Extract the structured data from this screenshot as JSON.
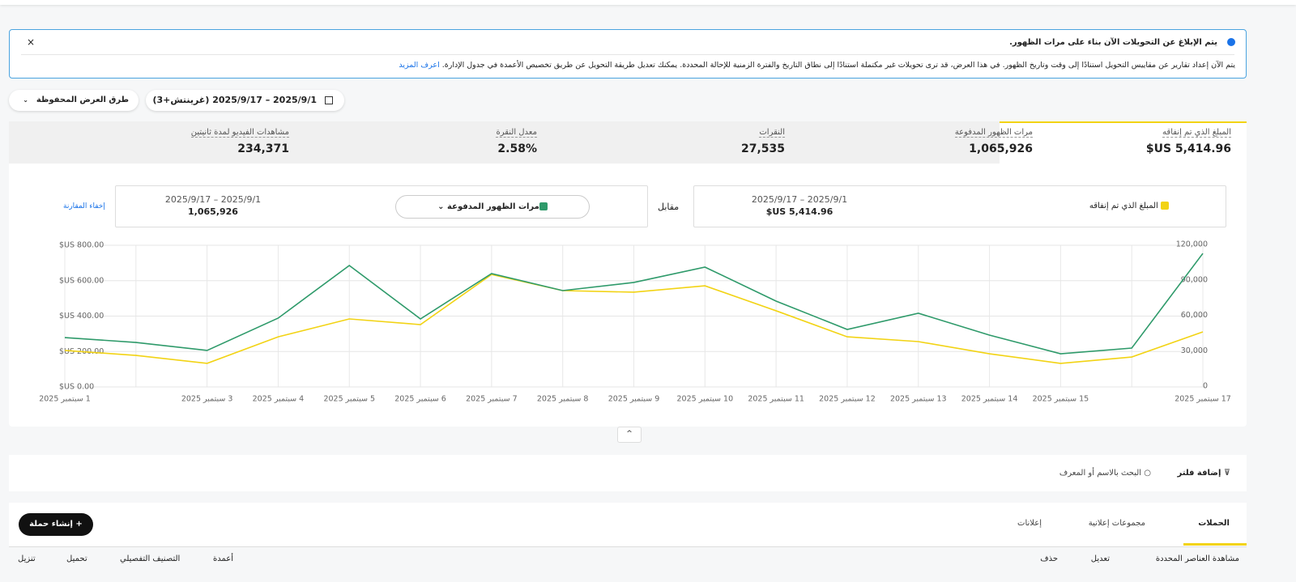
{
  "notice": {
    "title": "يتم الإبلاغ عن التحويلات الآن بناء على مرات الظهور.",
    "body": "يتم الآن إعداد تقارير عن مقاييس التحويل استنادًا إلى وقت وتاريخ الظهور. في هذا العرض، قد ترى تحويلات غير مكتملة استنادًا إلى نطاق التاريخ والفترة الزمنية للإحالة المحددة. يمكنك تعديل طريقة التحويل عن طريق تخصيص الأعمدة في جدول الإدارة.",
    "link": "اعرف المزيد",
    "close": "×"
  },
  "toolbar": {
    "date_range": "2025/9/1 – 2025/9/17 (غرينتش+3)",
    "saved_views": "طرق العرض المحفوظة"
  },
  "metrics": [
    {
      "label": "المبلغ الذي تم إنفاقه",
      "value": "$US 5,414.96"
    },
    {
      "label": "مرات الظهور المدفوعة",
      "value": "1,065,926"
    },
    {
      "label": "النقرات",
      "value": "27,535"
    },
    {
      "label": "معدل النقرة",
      "value": "2.58%"
    },
    {
      "label": "مشاهدات الفيديو لمدة ثانيتين",
      "value": "234,371"
    }
  ],
  "comparison": {
    "primary": {
      "date": "2025/9/1 – 2025/9/17",
      "value": "$US 5,414.96"
    },
    "versus": "مقابل",
    "secondary": {
      "date": "2025/9/1 – 2025/9/17",
      "value": "1,065,926"
    },
    "hide": "إخفاء المقارنة"
  },
  "chart_data": {
    "type": "line",
    "categories": [
      "1 سبتمبر 2025",
      null,
      "3 سبتمبر 2025",
      "4 سبتمبر 2025",
      "5 سبتمبر 2025",
      "6 سبتمبر 2025",
      "7 سبتمبر 2025",
      "8 سبتمبر 2025",
      "9 سبتمبر 2025",
      "10 سبتمبر 2025",
      "11 سبتمبر 2025",
      "12 سبتمبر 2025",
      "13 سبتمبر 2025",
      "14 سبتمبر 2025",
      "15 سبتمبر 2025",
      null,
      "17 سبتمبر 2025"
    ],
    "series": [
      {
        "name": "المبلغ الذي تم إنفاقه",
        "color": "#f2d314",
        "values": [
          206,
          178,
          133,
          283,
          384,
          352,
          635,
          544,
          535,
          571,
          430,
          283,
          256,
          187,
          133,
          169,
          311
        ]
      },
      {
        "name": "مرات الظهور المدفوعة",
        "color": "#2e9a6a",
        "axis": "y2",
        "values": [
          41800,
          37700,
          30900,
          58300,
          102900,
          57600,
          96000,
          81600,
          88500,
          101500,
          72700,
          48700,
          62400,
          43900,
          28100,
          32900,
          113100
        ]
      }
    ],
    "ylim": [
      0,
      800
    ],
    "yticks": [
      {
        "value": 0,
        "label": "$US 0.00"
      },
      {
        "value": 200,
        "label": "$US 200.00"
      },
      {
        "value": 400,
        "label": "$US 400.00"
      },
      {
        "value": 600,
        "label": "$US 600.00"
      },
      {
        "value": 800,
        "label": "$US 800.00"
      }
    ],
    "y2lim": [
      0,
      120000
    ],
    "y2ticks": [
      0,
      {
        "value": 30000,
        "label": "30,000"
      },
      {
        "value": 60000,
        "label": "60,000"
      },
      {
        "value": 90000,
        "label": "90,000"
      },
      {
        "value": 120000,
        "label": "120,000"
      }
    ],
    "grid": true
  },
  "filters": {
    "add": "إضافة فلتر",
    "search": "البحث بالاسم أو المعرف"
  },
  "tabs": [
    "الحملات",
    "مجموعات إعلانية",
    "إعلانات"
  ],
  "create": "إنشاء حملة",
  "actions": {
    "view": "مشاهدة العناصر المحددة",
    "edit": "تعديل",
    "delete": "حذف",
    "columns": "أعمدة",
    "breakdown": "التصنيف التفصيلي",
    "upload": "تحميل",
    "download": "تنزيل"
  }
}
